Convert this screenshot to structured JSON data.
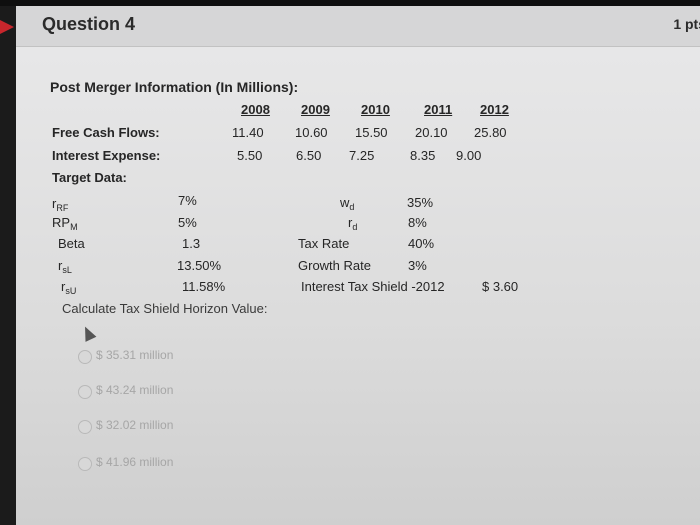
{
  "header": {
    "title": "Question 4",
    "points": "1 pts"
  },
  "question": {
    "heading": "Post Merger Information (In Millions):",
    "years": [
      "2008",
      "2009",
      "2010",
      "2011",
      "2012"
    ],
    "free_cash_flows": {
      "label": "Free Cash Flows:",
      "values": [
        "11.40",
        "10.60",
        "15.50",
        "20.10",
        "25.80"
      ]
    },
    "interest_expense": {
      "label": "Interest Expense:",
      "values": [
        "5.50",
        "6.50",
        "7.25",
        "8.35",
        "9.00"
      ]
    },
    "target_data_label": "Target Data:",
    "left_params": [
      {
        "name": "r",
        "sub": "RF",
        "value": "7%"
      },
      {
        "name": "RP",
        "sub": "M",
        "value": "5%"
      },
      {
        "name": "Beta",
        "sub": "",
        "value": "1.3"
      },
      {
        "name": "r",
        "sub": "sL",
        "value": "13.50%"
      },
      {
        "name": "r",
        "sub": "sU",
        "value": "11.58%"
      }
    ],
    "right_params": [
      {
        "name": "w",
        "sub": "d",
        "value": "35%"
      },
      {
        "name": "r",
        "sub": "d",
        "value": "8%"
      },
      {
        "name": "Tax Rate",
        "sub": "",
        "value": "40%"
      },
      {
        "name": "Growth Rate",
        "sub": "",
        "value": "3%"
      },
      {
        "name": "Interest Tax Shield -2012",
        "sub": "",
        "value": "$  3.60"
      }
    ],
    "prompt": "Calculate Tax Shield Horizon Value:"
  },
  "choices": [
    "$ 35.31 million",
    "$ 43.24 million",
    "$ 32.02 million",
    "$ 41.96 million"
  ],
  "colors": {
    "accent": "#c8262c"
  }
}
